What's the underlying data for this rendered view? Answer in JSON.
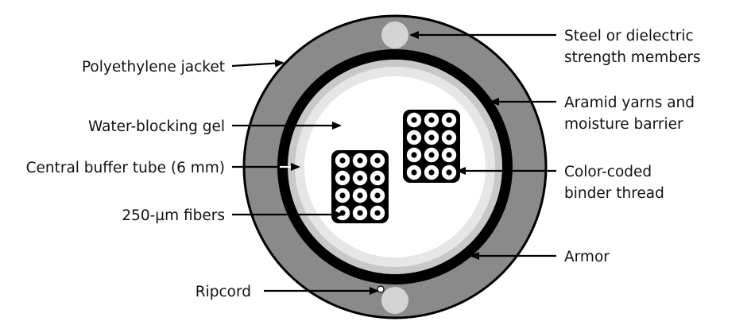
{
  "diagram": {
    "labels": {
      "polyethylene_jacket": "Polyethylene jacket",
      "water_blocking_gel": "Water-blocking gel",
      "central_buffer_tube": "Central buffer tube (6 mm)",
      "fibers_250um": "250-µm fibers",
      "ripcord": "Ripcord",
      "strength_members_line1": "Steel or dielectric",
      "strength_members_line2": "strength members",
      "aramid_line1": "Aramid yarns and",
      "aramid_line2": "moisture barrier",
      "binder_line1": "Color-coded",
      "binder_line2": "binder thread",
      "armor": "Armor"
    },
    "colors": {
      "jacket": "#8a8a8a",
      "armor": "#000000",
      "barrier_ring": "#c8c8c8",
      "buffer_ring": "#e4e4e4",
      "gel": "#ffffff",
      "strength_member": "#d4d4d4",
      "fiber_bundle": "#000000",
      "line": "#000000"
    },
    "fiber_bundles": [
      {
        "name": "left-fiber-bundle",
        "rows": 4,
        "cols": 3
      },
      {
        "name": "right-fiber-bundle",
        "rows": 4,
        "cols": 3
      }
    ]
  }
}
